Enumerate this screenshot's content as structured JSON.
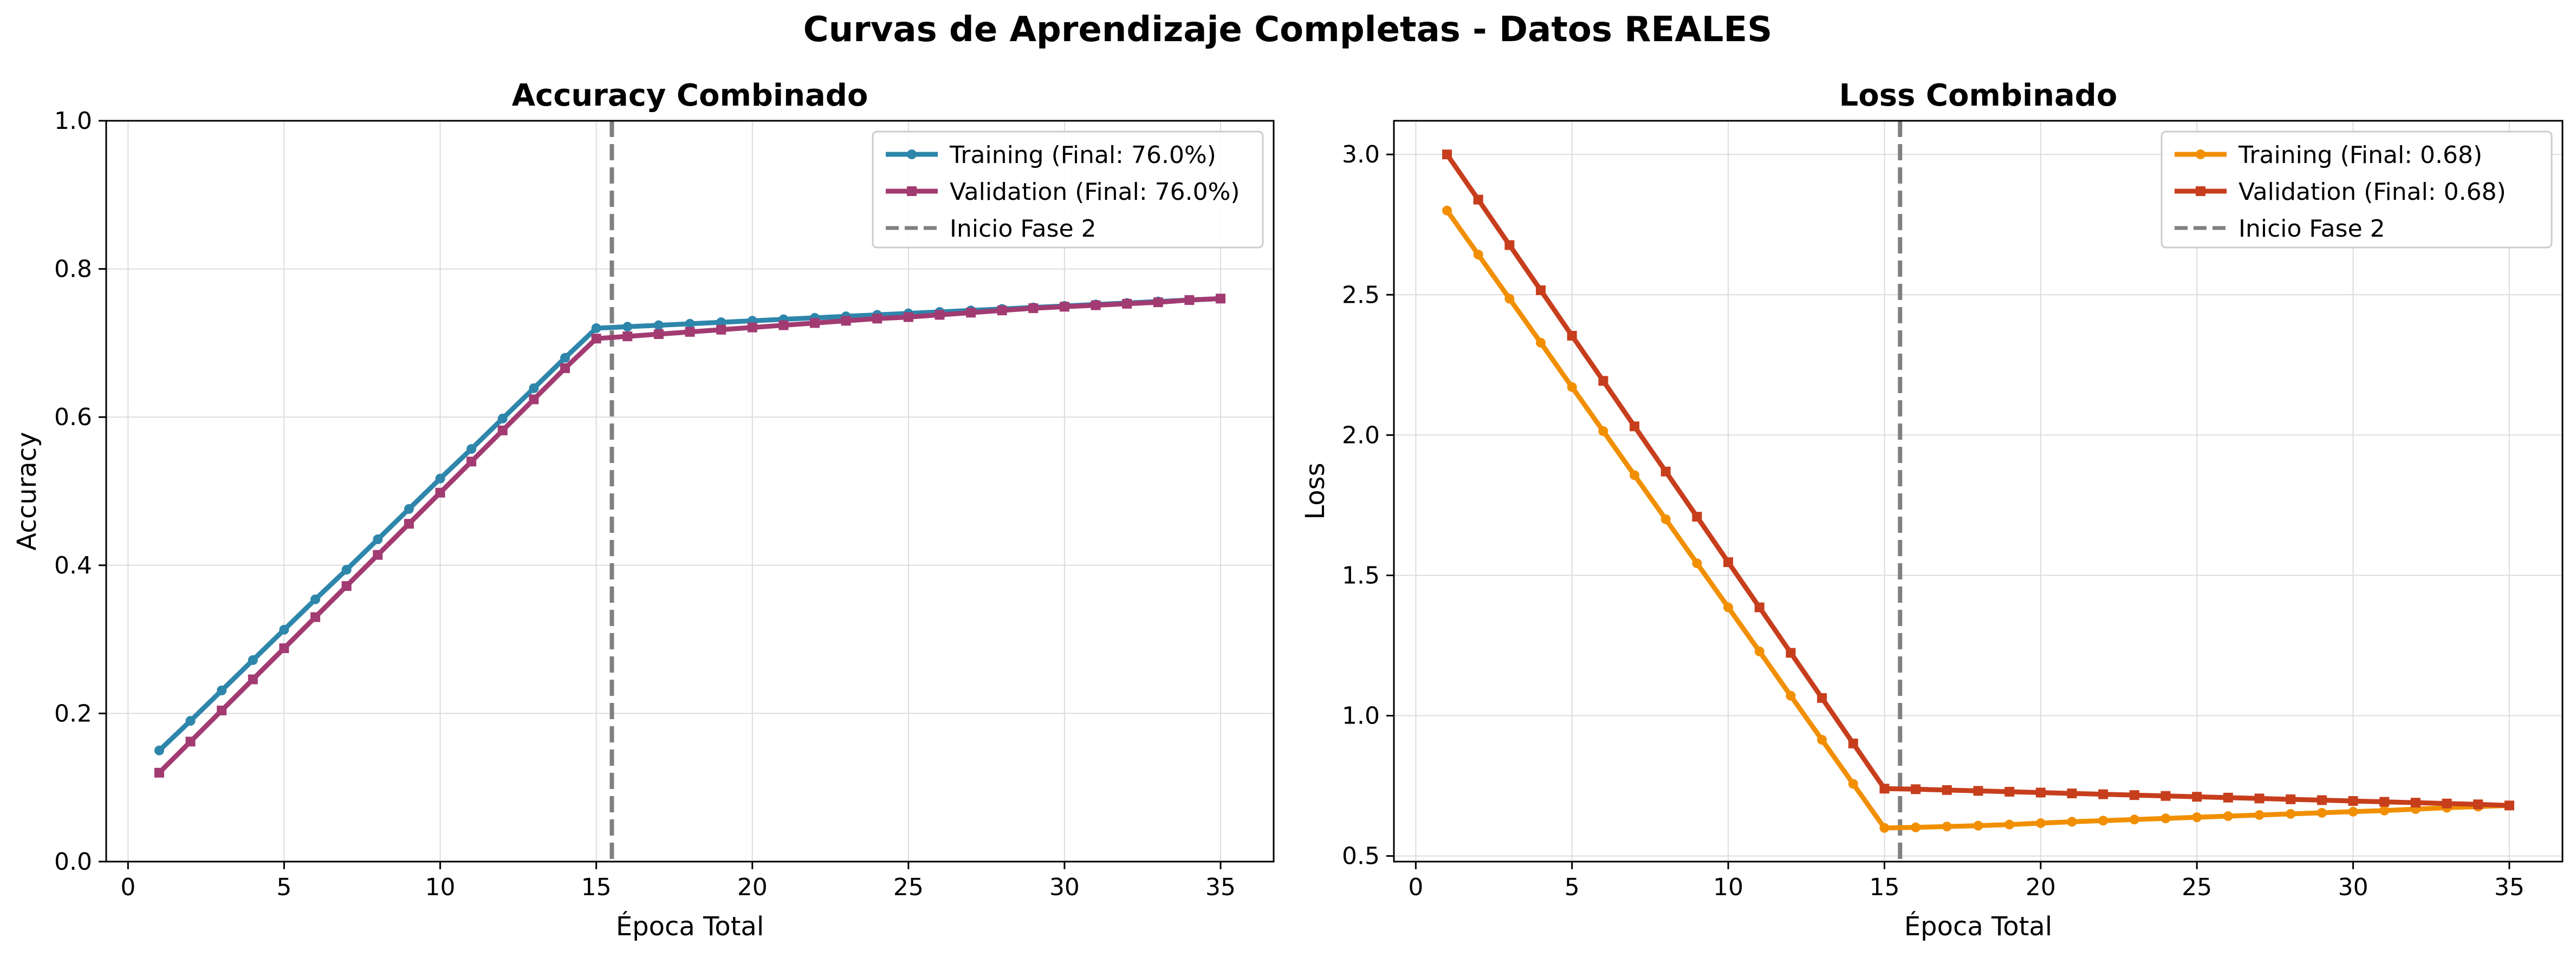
{
  "figure": {
    "suptitle": "Curvas de Aprendizaje Completas - Datos REALES"
  },
  "chart_data": [
    {
      "type": "line",
      "title": "Accuracy Combinado",
      "xlabel": "Época Total",
      "ylabel": "Accuracy",
      "xlim": [
        -0.7,
        36.7
      ],
      "ylim": [
        0.0,
        1.0
      ],
      "xticks": [
        0,
        5,
        10,
        15,
        20,
        25,
        30,
        35
      ],
      "yticks": [
        0.0,
        0.2,
        0.4,
        0.6,
        0.8,
        1.0
      ],
      "ytick_decimals": 1,
      "grid": true,
      "legend_position": "top-right",
      "x": [
        1,
        2,
        3,
        4,
        5,
        6,
        7,
        8,
        9,
        10,
        11,
        12,
        13,
        14,
        15,
        16,
        17,
        18,
        19,
        20,
        21,
        22,
        23,
        24,
        25,
        26,
        27,
        28,
        29,
        30,
        31,
        32,
        33,
        34,
        35
      ],
      "series": [
        {
          "name": "Training (Final: 76.0%)",
          "color": "#2e86ab",
          "marker": "circle",
          "values": [
            0.15,
            0.19,
            0.231,
            0.272,
            0.313,
            0.354,
            0.394,
            0.435,
            0.476,
            0.517,
            0.557,
            0.598,
            0.639,
            0.68,
            0.72,
            0.722,
            0.724,
            0.726,
            0.728,
            0.73,
            0.732,
            0.734,
            0.736,
            0.738,
            0.74,
            0.742,
            0.744,
            0.746,
            0.748,
            0.75,
            0.752,
            0.754,
            0.756,
            0.758,
            0.76
          ]
        },
        {
          "name": "Validation (Final: 76.0%)",
          "color": "#a23b72",
          "marker": "square",
          "values": [
            0.12,
            0.162,
            0.204,
            0.246,
            0.288,
            0.33,
            0.372,
            0.414,
            0.456,
            0.498,
            0.54,
            0.582,
            0.624,
            0.666,
            0.706,
            0.709,
            0.712,
            0.715,
            0.718,
            0.721,
            0.724,
            0.727,
            0.73,
            0.733,
            0.735,
            0.738,
            0.741,
            0.744,
            0.747,
            0.749,
            0.751,
            0.753,
            0.755,
            0.758,
            0.76
          ]
        }
      ],
      "vline": {
        "x": 15.5,
        "label": "Inicio Fase 2",
        "color": "#808080"
      }
    },
    {
      "type": "line",
      "title": "Loss Combinado",
      "xlabel": "Época Total",
      "ylabel": "Loss",
      "xlim": [
        -0.7,
        36.7
      ],
      "ylim": [
        0.48,
        3.12
      ],
      "xticks": [
        0,
        5,
        10,
        15,
        20,
        25,
        30,
        35
      ],
      "yticks": [
        0.5,
        1.0,
        1.5,
        2.0,
        2.5,
        3.0
      ],
      "ytick_decimals": 1,
      "grid": true,
      "legend_position": "top-right",
      "x": [
        1,
        2,
        3,
        4,
        5,
        6,
        7,
        8,
        9,
        10,
        11,
        12,
        13,
        14,
        15,
        16,
        17,
        18,
        19,
        20,
        21,
        22,
        23,
        24,
        25,
        26,
        27,
        28,
        29,
        30,
        31,
        32,
        33,
        34,
        35
      ],
      "series": [
        {
          "name": "Training (Final: 0.68)",
          "color": "#f18f01",
          "marker": "circle",
          "values": [
            2.8,
            2.643,
            2.486,
            2.329,
            2.171,
            2.014,
            1.857,
            1.7,
            1.543,
            1.386,
            1.229,
            1.071,
            0.914,
            0.757,
            0.6,
            0.602,
            0.605,
            0.608,
            0.612,
            0.617,
            0.622,
            0.626,
            0.63,
            0.634,
            0.638,
            0.642,
            0.646,
            0.65,
            0.654,
            0.658,
            0.662,
            0.667,
            0.672,
            0.676,
            0.68
          ]
        },
        {
          "name": "Validation (Final: 0.68)",
          "color": "#c73e1d",
          "marker": "square",
          "values": [
            3.0,
            2.839,
            2.677,
            2.516,
            2.354,
            2.193,
            2.031,
            1.87,
            1.709,
            1.547,
            1.386,
            1.224,
            1.063,
            0.901,
            0.74,
            0.738,
            0.735,
            0.732,
            0.729,
            0.726,
            0.723,
            0.72,
            0.717,
            0.714,
            0.711,
            0.708,
            0.705,
            0.702,
            0.699,
            0.696,
            0.693,
            0.69,
            0.687,
            0.684,
            0.68
          ]
        }
      ],
      "vline": {
        "x": 15.5,
        "label": "Inicio Fase 2",
        "color": "#808080"
      }
    }
  ]
}
